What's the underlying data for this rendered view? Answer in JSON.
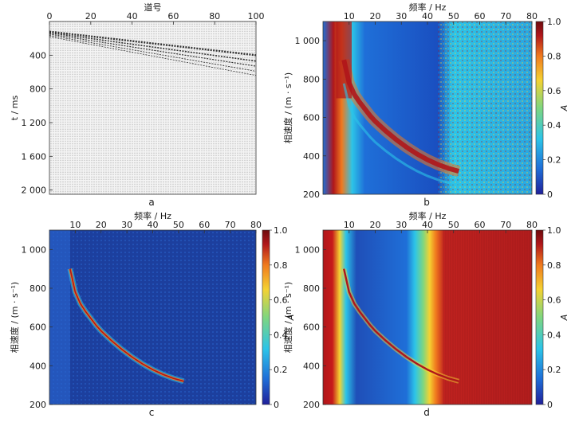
{
  "chart_data": [
    {
      "id": "a",
      "type": "seismic-gather",
      "panel_label": "a",
      "xlabel": "道号",
      "ylabel": "t / ms",
      "xticks": [
        "0",
        "20",
        "40",
        "60",
        "80",
        "100"
      ],
      "xtick_values": [
        0,
        20,
        40,
        60,
        80,
        100
      ],
      "yticks": [
        "400",
        "800",
        "1 200",
        "1 600",
        "2 000"
      ],
      "ytick_values": [
        400,
        800,
        1200,
        1600,
        2000
      ],
      "xlim": [
        0,
        100
      ],
      "ylim": [
        0,
        2050
      ],
      "colors": {
        "trace": "#555555",
        "event": "#111111",
        "background": "#f2f2f2"
      }
    },
    {
      "id": "b",
      "type": "heatmap",
      "panel_label": "b",
      "xlabel": "频率 / Hz",
      "ylabel": "相速度 / (m · s⁻¹)",
      "xticks": [
        "10",
        "20",
        "30",
        "40",
        "50",
        "60",
        "70",
        "80"
      ],
      "xtick_values": [
        10,
        20,
        30,
        40,
        50,
        60,
        70,
        80
      ],
      "yticks": [
        "200",
        "400",
        "600",
        "800",
        "1 000"
      ],
      "ytick_values": [
        200,
        400,
        600,
        800,
        1000
      ],
      "xlim": [
        0,
        80
      ],
      "ylim": [
        200,
        1100
      ],
      "colorbar": {
        "label": "A",
        "ticks": [
          "0",
          "0.2",
          "0.4",
          "0.6",
          "0.8",
          "1.0"
        ],
        "tick_values": [
          0,
          0.2,
          0.4,
          0.6,
          0.8,
          1.0
        ]
      },
      "colormap": [
        "#20209a",
        "#1f6fd8",
        "#2cc4e8",
        "#7fd67f",
        "#f4d232",
        "#f07a1e",
        "#b0161a",
        "#6e0b0e"
      ]
    },
    {
      "id": "c",
      "type": "heatmap",
      "panel_label": "c",
      "xlabel": "频率 / Hz",
      "ylabel": "相速度 / (m · s⁻¹)",
      "xticks": [
        "10",
        "20",
        "30",
        "40",
        "50",
        "60",
        "70",
        "80"
      ],
      "xtick_values": [
        10,
        20,
        30,
        40,
        50,
        60,
        70,
        80
      ],
      "yticks": [
        "200",
        "400",
        "600",
        "800",
        "1 000"
      ],
      "ytick_values": [
        200,
        400,
        600,
        800,
        1000
      ],
      "xlim": [
        0,
        80
      ],
      "ylim": [
        200,
        1100
      ],
      "colorbar": {
        "label": "A",
        "ticks": [
          "0",
          "0.2",
          "0.4",
          "0.6",
          "0.8",
          "1.0"
        ],
        "tick_values": [
          0,
          0.2,
          0.4,
          0.6,
          0.8,
          1.0
        ]
      }
    },
    {
      "id": "d",
      "type": "heatmap",
      "panel_label": "d",
      "xlabel": "频率 / Hz",
      "ylabel": "相速度 / (m · s⁻¹)",
      "xticks": [
        "10",
        "20",
        "30",
        "40",
        "50",
        "60",
        "70",
        "80"
      ],
      "xtick_values": [
        10,
        20,
        30,
        40,
        50,
        60,
        70,
        80
      ],
      "yticks": [
        "200",
        "400",
        "600",
        "800",
        "1 000"
      ],
      "ytick_values": [
        200,
        400,
        600,
        800,
        1000
      ],
      "xlim": [
        0,
        80
      ],
      "ylim": [
        200,
        1100
      ],
      "colorbar": {
        "label": "A",
        "ticks": [
          "0",
          "0.2",
          "0.4",
          "0.6",
          "0.8",
          "1.0"
        ],
        "tick_values": [
          0,
          0.2,
          0.4,
          0.6,
          0.8,
          1.0
        ]
      }
    }
  ],
  "dispersion_curve": {
    "frequency_hz": [
      8,
      10,
      12,
      14,
      16,
      18,
      20,
      24,
      28,
      32,
      36,
      40,
      44,
      48,
      52
    ],
    "phase_velocity_m_s": [
      900,
      780,
      720,
      680,
      645,
      610,
      580,
      530,
      485,
      445,
      410,
      380,
      355,
      335,
      320
    ]
  }
}
